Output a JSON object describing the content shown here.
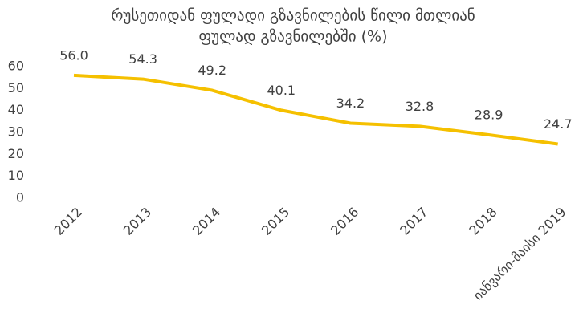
{
  "chart_data": {
    "type": "line",
    "title": [
      "რუსეთიდან ფულადი გზავნილების წილი მთლიან",
      "ფულად გზავნილებში (%)"
    ],
    "categories": [
      "2012",
      "2013",
      "2014",
      "2015",
      "2016",
      "2017",
      "2018",
      "იანვარი-მაისი 2019"
    ],
    "series": [
      {
        "name": null,
        "color": "#f5c000",
        "values": [
          56.0,
          54.3,
          49.2,
          40.1,
          34.2,
          32.8,
          28.9,
          24.7
        ],
        "value_labels": [
          "56.0",
          "54.3",
          "49.2",
          "40.1",
          "34.2",
          "32.8",
          "28.9",
          "24.7"
        ]
      }
    ],
    "ylim": [
      0,
      60
    ],
    "yticks": [
      0,
      10,
      20,
      30,
      40,
      50,
      60
    ],
    "grid": false
  }
}
